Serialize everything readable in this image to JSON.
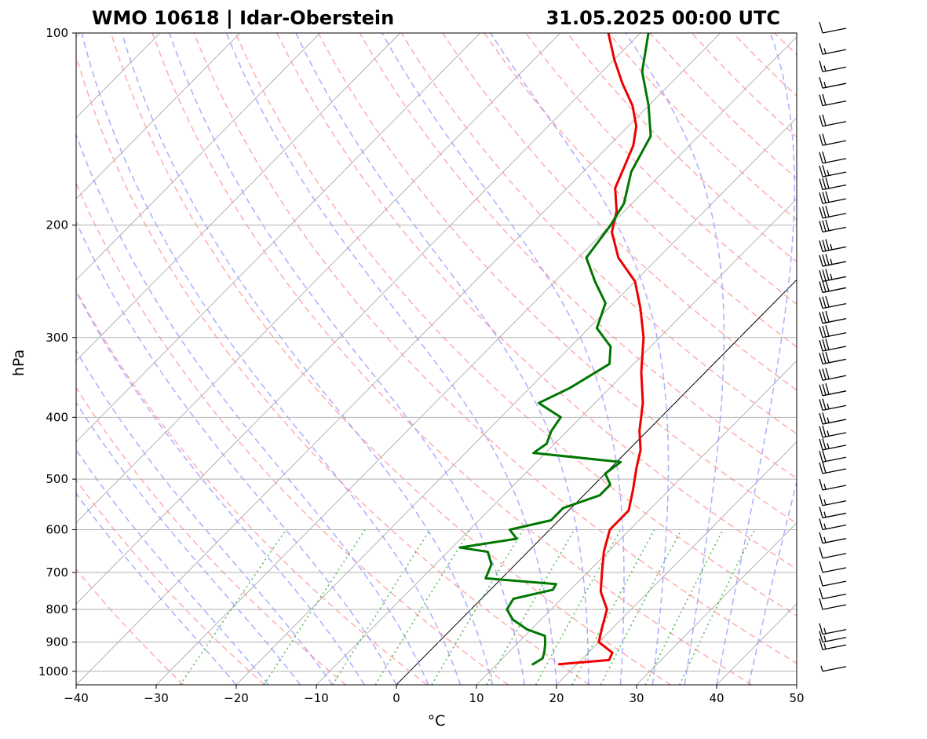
{
  "header": {
    "title_left": "WMO 10618 | Idar-Oberstein",
    "title_right": "31.05.2025 00:00 UTC"
  },
  "axes": {
    "xlabel": "°C",
    "ylabel": "hPa",
    "xticks": [
      "−40",
      "−30",
      "−20",
      "−10",
      "0",
      "10",
      "20",
      "30",
      "40",
      "50"
    ],
    "yticks": [
      "100",
      "200",
      "300",
      "400",
      "500",
      "600",
      "700",
      "800",
      "900",
      "1000"
    ]
  },
  "chart_data": {
    "type": "line",
    "subtype": "skew-t log-p sounding diagram",
    "title": "WMO 10618 | Idar-Oberstein 31.05.2025 00:00 UTC",
    "xlabel": "°C",
    "ylabel": "hPa",
    "xlim": [
      -40,
      50
    ],
    "ylim": [
      1050,
      100
    ],
    "y_scale": "log",
    "x_ticks": [
      -40,
      -30,
      -20,
      -10,
      0,
      10,
      20,
      30,
      40,
      50
    ],
    "y_ticks": [
      100,
      200,
      300,
      400,
      500,
      600,
      700,
      800,
      900,
      1000
    ],
    "grid": true,
    "reference_lines": {
      "isotherms_skewed": {
        "color": "#888888",
        "style": "solid"
      },
      "isotherm_0C": {
        "color": "#000000",
        "style": "solid"
      },
      "dry_adiabats": {
        "color": "#ff9999",
        "style": "dashed"
      },
      "moist_adiabats": {
        "color": "#9999ff",
        "style": "dashed"
      },
      "mixing_ratio": {
        "color": "#33aa33",
        "style": "dotted"
      }
    },
    "series": [
      {
        "color": "#ee0000",
        "description": "temperature profile",
        "points": [
          [
            975,
            17.8
          ],
          [
            960,
            23.5
          ],
          [
            935,
            23.0
          ],
          [
            900,
            20.0
          ],
          [
            850,
            18.5
          ],
          [
            800,
            17.0
          ],
          [
            750,
            14.0
          ],
          [
            700,
            11.8
          ],
          [
            650,
            9.5
          ],
          [
            600,
            7.5
          ],
          [
            560,
            7.5
          ],
          [
            520,
            5.5
          ],
          [
            480,
            3.2
          ],
          [
            450,
            1.5
          ],
          [
            420,
            -1.0
          ],
          [
            380,
            -4.0
          ],
          [
            340,
            -8.0
          ],
          [
            300,
            -12.0
          ],
          [
            270,
            -16.0
          ],
          [
            245,
            -20.0
          ],
          [
            225,
            -25.0
          ],
          [
            205,
            -29.0
          ],
          [
            190,
            -31.0
          ],
          [
            175,
            -34.0
          ],
          [
            162,
            -35.5
          ],
          [
            150,
            -37.0
          ],
          [
            140,
            -39.0
          ],
          [
            130,
            -42.0
          ],
          [
            120,
            -46.0
          ],
          [
            110,
            -50.0
          ],
          [
            100,
            -54.0
          ]
        ]
      },
      {
        "color": "#007700",
        "description": "dewpoint profile",
        "points": [
          [
            975,
            14.5
          ],
          [
            955,
            15.0
          ],
          [
            935,
            14.5
          ],
          [
            905,
            13.5
          ],
          [
            880,
            12.5
          ],
          [
            860,
            9.5
          ],
          [
            830,
            6.5
          ],
          [
            800,
            4.5
          ],
          [
            770,
            4.0
          ],
          [
            745,
            7.8
          ],
          [
            730,
            7.5
          ],
          [
            715,
            -2.0
          ],
          [
            680,
            -3.0
          ],
          [
            650,
            -5.0
          ],
          [
            640,
            -9.0
          ],
          [
            620,
            -3.0
          ],
          [
            600,
            -5.0
          ],
          [
            580,
            -1.0
          ],
          [
            555,
            -1.0
          ],
          [
            530,
            2.0
          ],
          [
            510,
            2.0
          ],
          [
            490,
            0.0
          ],
          [
            470,
            0.5
          ],
          [
            455,
            -11.5
          ],
          [
            440,
            -11.0
          ],
          [
            420,
            -12.0
          ],
          [
            400,
            -12.5
          ],
          [
            380,
            -17.0
          ],
          [
            360,
            -15.0
          ],
          [
            330,
            -13.0
          ],
          [
            310,
            -15.0
          ],
          [
            290,
            -19.0
          ],
          [
            265,
            -21.0
          ],
          [
            245,
            -25.0
          ],
          [
            225,
            -29.0
          ],
          [
            200,
            -30.0
          ],
          [
            185,
            -31.0
          ],
          [
            165,
            -34.0
          ],
          [
            145,
            -36.0
          ],
          [
            130,
            -40.0
          ],
          [
            115,
            -45.0
          ],
          [
            100,
            -49.0
          ]
        ]
      }
    ],
    "wind_barbs": {
      "color": "#000000",
      "description": "wind barbs at right margin, pressure (hPa) and speed (knots); westerly flow throughout",
      "levels": [
        [
          1000,
          5
        ],
        [
          925,
          15
        ],
        [
          900,
          15
        ],
        [
          875,
          15
        ],
        [
          800,
          10
        ],
        [
          770,
          10
        ],
        [
          735,
          10
        ],
        [
          700,
          10
        ],
        [
          665,
          10
        ],
        [
          630,
          15
        ],
        [
          600,
          15
        ],
        [
          575,
          15
        ],
        [
          550,
          15
        ],
        [
          520,
          15
        ],
        [
          490,
          20
        ],
        [
          470,
          20
        ],
        [
          450,
          25
        ],
        [
          430,
          25
        ],
        [
          410,
          25
        ],
        [
          390,
          25
        ],
        [
          370,
          30
        ],
        [
          350,
          30
        ],
        [
          330,
          30
        ],
        [
          315,
          30
        ],
        [
          300,
          30
        ],
        [
          285,
          30
        ],
        [
          270,
          30
        ],
        [
          255,
          30
        ],
        [
          245,
          35
        ],
        [
          232,
          35
        ],
        [
          220,
          35
        ],
        [
          205,
          30
        ],
        [
          195,
          30
        ],
        [
          185,
          30
        ],
        [
          176,
          30
        ],
        [
          168,
          25
        ],
        [
          160,
          20
        ],
        [
          150,
          20
        ],
        [
          140,
          20
        ],
        [
          130,
          20
        ],
        [
          122,
          15
        ],
        [
          115,
          15
        ],
        [
          108,
          15
        ],
        [
          100,
          10
        ]
      ]
    }
  }
}
